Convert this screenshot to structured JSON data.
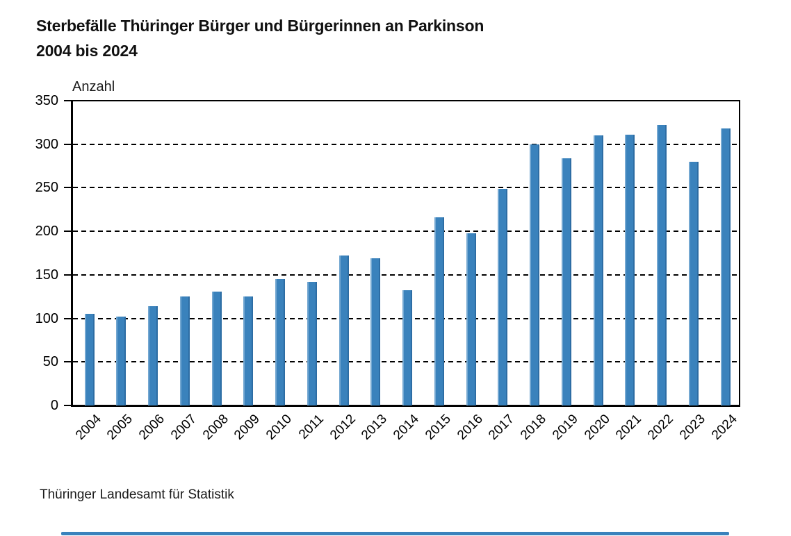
{
  "header": {
    "title_line1": "Sterbefälle Thüringer Bürger und Bürgerinnen an Parkinson",
    "title_line2": "2004 bis 2024"
  },
  "footer": {
    "source": "Thüringer Landesamt für Statistik"
  },
  "chart_data": {
    "type": "bar",
    "title": "Sterbefälle Thüringer Bürger und Bürgerinnen an Parkinson 2004 bis 2024",
    "ylabel": "Anzahl",
    "xlabel": "",
    "categories": [
      "2004",
      "2005",
      "2006",
      "2007",
      "2008",
      "2009",
      "2010",
      "2011",
      "2012",
      "2013",
      "2014",
      "2015",
      "2016",
      "2017",
      "2018",
      "2019",
      "2020",
      "2021",
      "2022",
      "2023",
      "2024"
    ],
    "values": [
      105,
      102,
      114,
      125,
      131,
      125,
      145,
      142,
      172,
      169,
      132,
      216,
      198,
      249,
      300,
      284,
      310,
      311,
      322,
      280,
      318
    ],
    "ylim": [
      0,
      350
    ],
    "yticks": [
      0,
      50,
      100,
      150,
      200,
      250,
      300,
      350
    ],
    "grid": "horizontal-dashed",
    "legend": "none",
    "source": "Thüringer Landesamt für Statistik"
  },
  "colors": {
    "background": "#ffffff",
    "bar": "#3a82bc",
    "bar_light_edge": "#73a7d1",
    "bar_dark_edge": "#2d6da4",
    "axis": "#000000",
    "text": "#1a1a1a",
    "scrollbar": "#3a82bc"
  }
}
